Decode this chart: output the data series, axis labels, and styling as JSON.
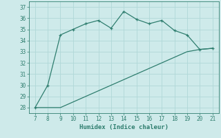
{
  "xlabel": "Humidex (Indice chaleur)",
  "x": [
    7,
    8,
    9,
    10,
    11,
    12,
    13,
    14,
    15,
    16,
    17,
    18,
    19,
    20,
    21
  ],
  "y_curve": [
    28,
    30,
    34.5,
    35.0,
    35.5,
    35.8,
    35.1,
    36.6,
    35.9,
    35.5,
    35.8,
    34.9,
    34.5,
    33.2,
    33.3
  ],
  "y_line": [
    28.0,
    28.0,
    28.0,
    28.5,
    29.0,
    29.5,
    30.0,
    30.5,
    31.0,
    31.5,
    32.0,
    32.5,
    33.0,
    33.2,
    33.3
  ],
  "color": "#2e7d6e",
  "bg_color": "#ceeaea",
  "grid_color": "#b0d8d8",
  "ylim": [
    27.5,
    37.5
  ],
  "xlim": [
    6.5,
    21.5
  ],
  "yticks": [
    28,
    29,
    30,
    31,
    32,
    33,
    34,
    35,
    36,
    37
  ],
  "xticks": [
    7,
    8,
    9,
    10,
    11,
    12,
    13,
    14,
    15,
    16,
    17,
    18,
    19,
    20,
    21
  ],
  "tick_fontsize": 5.5,
  "xlabel_fontsize": 6.5
}
